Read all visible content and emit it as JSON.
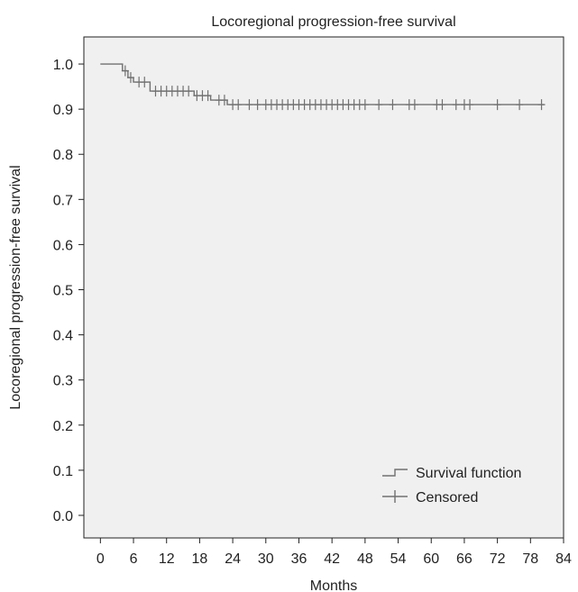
{
  "chart_data": {
    "type": "line",
    "subtype": "kaplan-meier",
    "title": "Locoregional progression-free survival",
    "xlabel": "Months",
    "ylabel": "Locoregional progression-free survival",
    "xlim": [
      -3,
      84
    ],
    "ylim": [
      -0.05,
      1.06
    ],
    "xticks": [
      0,
      6,
      12,
      18,
      24,
      30,
      36,
      42,
      48,
      54,
      60,
      66,
      72,
      78,
      84
    ],
    "yticks": [
      "0.0",
      "0.1",
      "0.2",
      "0.3",
      "0.4",
      "0.5",
      "0.6",
      "0.7",
      "0.8",
      "0.9",
      "1.0"
    ],
    "grid": false,
    "legend_position": "bottom-right",
    "series": [
      {
        "name": "Survival function",
        "step_points": [
          [
            0,
            1.0
          ],
          [
            4,
            1.0
          ],
          [
            4,
            0.985
          ],
          [
            5,
            0.985
          ],
          [
            5,
            0.97
          ],
          [
            6,
            0.97
          ],
          [
            6,
            0.96
          ],
          [
            9,
            0.96
          ],
          [
            9,
            0.94
          ],
          [
            17,
            0.94
          ],
          [
            17,
            0.93
          ],
          [
            20,
            0.93
          ],
          [
            20,
            0.92
          ],
          [
            23,
            0.92
          ],
          [
            23,
            0.91
          ],
          [
            80.5,
            0.91
          ]
        ]
      },
      {
        "name": "Censored",
        "points": [
          [
            4.5,
            0.985
          ],
          [
            5.5,
            0.97
          ],
          [
            7,
            0.96
          ],
          [
            8,
            0.96
          ],
          [
            10,
            0.94
          ],
          [
            11,
            0.94
          ],
          [
            12,
            0.94
          ],
          [
            13,
            0.94
          ],
          [
            14,
            0.94
          ],
          [
            15,
            0.94
          ],
          [
            16,
            0.94
          ],
          [
            17.5,
            0.93
          ],
          [
            18.5,
            0.93
          ],
          [
            19.5,
            0.93
          ],
          [
            21.5,
            0.92
          ],
          [
            22.5,
            0.92
          ],
          [
            24,
            0.91
          ],
          [
            25,
            0.91
          ],
          [
            27,
            0.91
          ],
          [
            28.5,
            0.91
          ],
          [
            30,
            0.91
          ],
          [
            31,
            0.91
          ],
          [
            32,
            0.91
          ],
          [
            33,
            0.91
          ],
          [
            34,
            0.91
          ],
          [
            35,
            0.91
          ],
          [
            36,
            0.91
          ],
          [
            37,
            0.91
          ],
          [
            38,
            0.91
          ],
          [
            39,
            0.91
          ],
          [
            40,
            0.91
          ],
          [
            41,
            0.91
          ],
          [
            42,
            0.91
          ],
          [
            43,
            0.91
          ],
          [
            44,
            0.91
          ],
          [
            45,
            0.91
          ],
          [
            46,
            0.91
          ],
          [
            47,
            0.91
          ],
          [
            48,
            0.91
          ],
          [
            50.5,
            0.91
          ],
          [
            53,
            0.91
          ],
          [
            56,
            0.91
          ],
          [
            57,
            0.91
          ],
          [
            61,
            0.91
          ],
          [
            62,
            0.91
          ],
          [
            64.5,
            0.91
          ],
          [
            66,
            0.91
          ],
          [
            67,
            0.91
          ],
          [
            72,
            0.91
          ],
          [
            76,
            0.91
          ],
          [
            80,
            0.91
          ]
        ]
      }
    ]
  },
  "colors": {
    "plot_background": "#f0f0f0",
    "series": "#707070",
    "axis": "#222222"
  }
}
